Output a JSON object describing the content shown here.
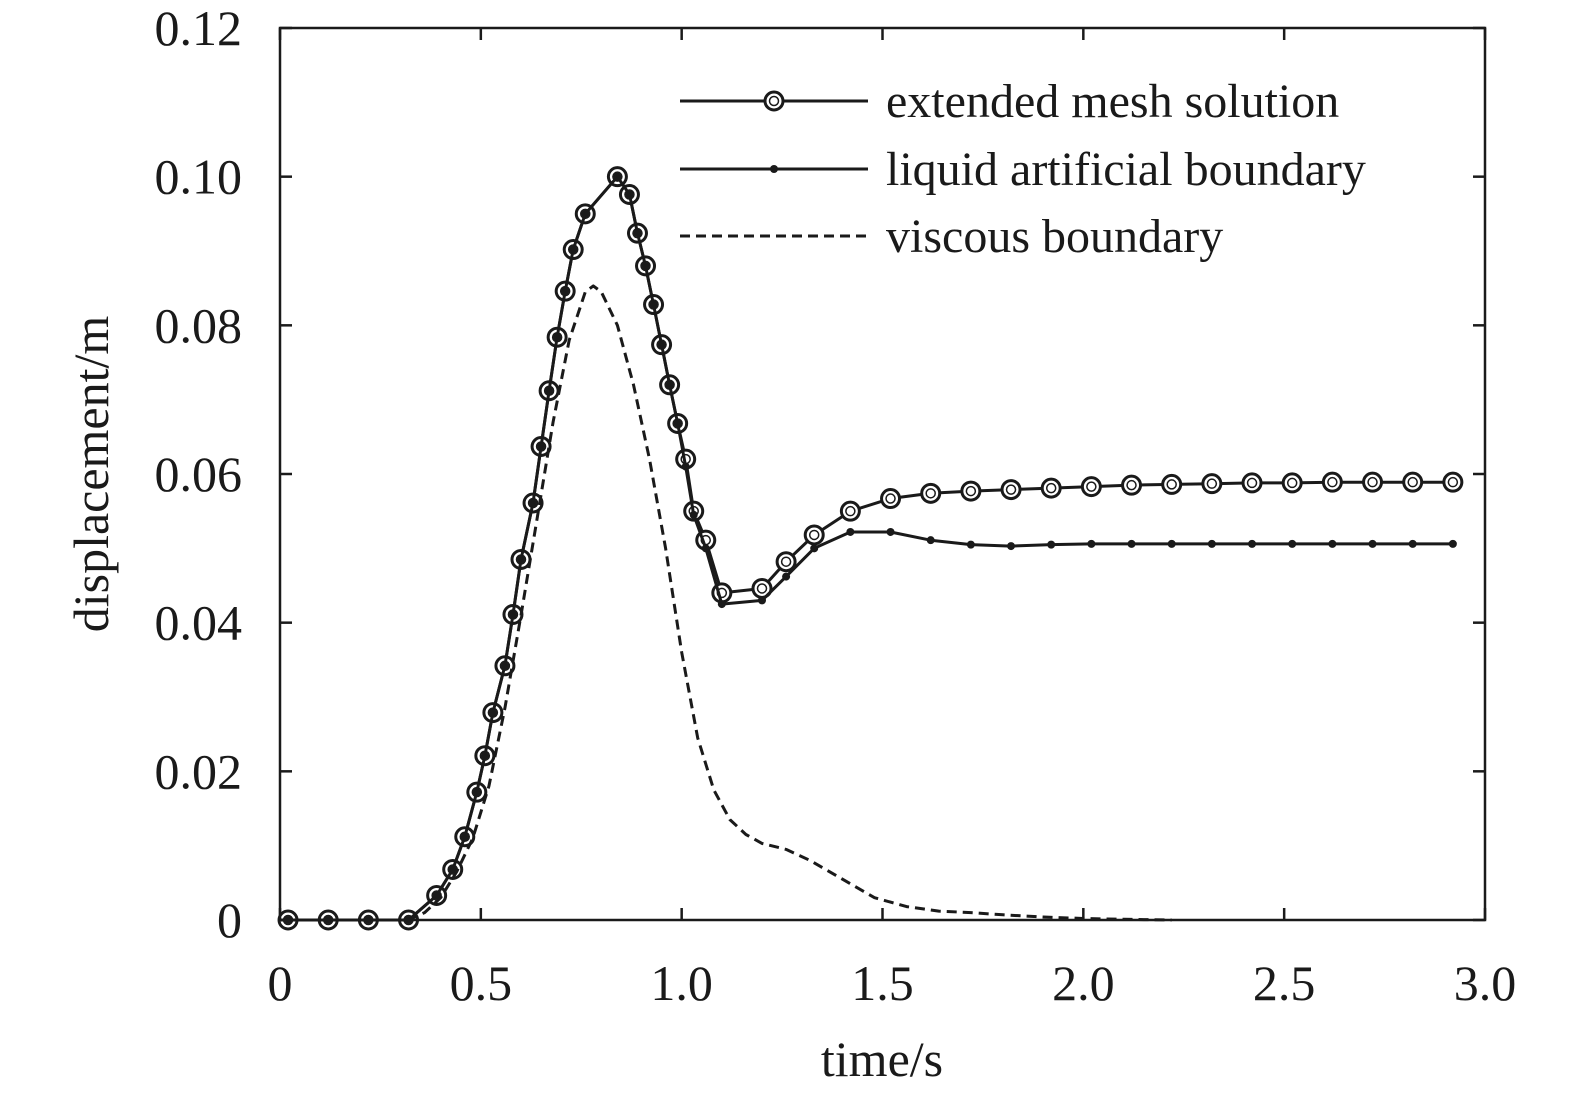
{
  "chart_data": {
    "type": "line",
    "title": "",
    "xlabel": "time/s",
    "ylabel": "displacement/m",
    "xlim": [
      0,
      3.0
    ],
    "ylim": [
      0,
      0.12
    ],
    "xticks": [
      0,
      0.5,
      1.0,
      1.5,
      2.0,
      2.5,
      3.0
    ],
    "xtick_labels": [
      "0",
      "0.5",
      "1.0",
      "1.5",
      "2.0",
      "2.5",
      "3.0"
    ],
    "yticks": [
      0,
      0.02,
      0.04,
      0.06,
      0.08,
      0.1,
      0.12
    ],
    "ytick_labels": [
      "0",
      "0.02",
      "0.04",
      "0.06",
      "0.08",
      "0.10",
      "0.12"
    ],
    "grid": false,
    "legend_position": "top-right",
    "series": [
      {
        "name": "extended mesh solution",
        "marker": "open-circle",
        "dash": "solid",
        "color": "#1a1a1a",
        "x": [
          0.02,
          0.12,
          0.22,
          0.32,
          0.39,
          0.43,
          0.46,
          0.49,
          0.51,
          0.53,
          0.56,
          0.58,
          0.6,
          0.63,
          0.65,
          0.67,
          0.69,
          0.71,
          0.73,
          0.76,
          0.84,
          0.87,
          0.89,
          0.91,
          0.93,
          0.95,
          0.97,
          0.99,
          1.01,
          1.03,
          1.06,
          1.1,
          1.2,
          1.26,
          1.33,
          1.42,
          1.52,
          1.62,
          1.72,
          1.82,
          1.92,
          2.02,
          2.12,
          2.22,
          2.32,
          2.42,
          2.52,
          2.62,
          2.72,
          2.82,
          2.92
        ],
        "y": [
          0.0,
          0.0,
          0.0,
          0.0,
          0.0033,
          0.0068,
          0.0112,
          0.0172,
          0.0221,
          0.0279,
          0.0342,
          0.0411,
          0.0485,
          0.0561,
          0.0637,
          0.0712,
          0.0784,
          0.0846,
          0.0902,
          0.095,
          0.1,
          0.0976,
          0.0924,
          0.088,
          0.0828,
          0.0774,
          0.072,
          0.0668,
          0.062,
          0.055,
          0.0511,
          0.044,
          0.0446,
          0.0482,
          0.0518,
          0.055,
          0.0567,
          0.0574,
          0.0577,
          0.0579,
          0.0581,
          0.0583,
          0.0585,
          0.0586,
          0.0587,
          0.0588,
          0.0588,
          0.0589,
          0.0589,
          0.0589,
          0.0589
        ]
      },
      {
        "name": "liquid artificial boundary",
        "marker": "dot",
        "dash": "solid",
        "color": "#1a1a1a",
        "x": [
          0.02,
          0.12,
          0.22,
          0.32,
          0.39,
          0.43,
          0.46,
          0.49,
          0.51,
          0.53,
          0.56,
          0.58,
          0.6,
          0.63,
          0.65,
          0.67,
          0.69,
          0.71,
          0.73,
          0.76,
          0.84,
          0.87,
          0.89,
          0.91,
          0.93,
          0.95,
          0.97,
          0.99,
          1.01,
          1.03,
          1.06,
          1.1,
          1.2,
          1.26,
          1.33,
          1.42,
          1.52,
          1.62,
          1.72,
          1.82,
          1.92,
          2.02,
          2.12,
          2.22,
          2.32,
          2.42,
          2.52,
          2.62,
          2.72,
          2.82,
          2.92
        ],
        "y": [
          0.0,
          0.0,
          0.0,
          0.0,
          0.0033,
          0.0068,
          0.0112,
          0.0172,
          0.0221,
          0.0279,
          0.0342,
          0.0411,
          0.0485,
          0.0561,
          0.0637,
          0.0712,
          0.0784,
          0.0846,
          0.0902,
          0.095,
          0.1,
          0.0976,
          0.0924,
          0.088,
          0.0828,
          0.0774,
          0.072,
          0.0668,
          0.061,
          0.0545,
          0.05,
          0.0425,
          0.043,
          0.0462,
          0.05,
          0.0522,
          0.0522,
          0.0511,
          0.0505,
          0.0503,
          0.0505,
          0.0506,
          0.0506,
          0.0506,
          0.0506,
          0.0506,
          0.0506,
          0.0506,
          0.0506,
          0.0506,
          0.0506
        ]
      },
      {
        "name": "viscous boundary",
        "marker": "none",
        "dash": "dashed",
        "color": "#1a1a1a",
        "x": [
          0.0,
          0.32,
          0.36,
          0.4,
          0.44,
          0.48,
          0.52,
          0.56,
          0.6,
          0.64,
          0.68,
          0.72,
          0.76,
          0.78,
          0.8,
          0.84,
          0.88,
          0.92,
          0.96,
          1.0,
          1.04,
          1.08,
          1.12,
          1.16,
          1.2,
          1.26,
          1.32,
          1.4,
          1.48,
          1.56,
          1.64,
          1.72,
          1.8,
          1.9,
          2.0,
          2.1,
          2.22
        ],
        "y": [
          0.0,
          0.0,
          0.001,
          0.003,
          0.0065,
          0.011,
          0.018,
          0.0285,
          0.041,
          0.054,
          0.067,
          0.078,
          0.0845,
          0.0853,
          0.0845,
          0.08,
          0.072,
          0.062,
          0.05,
          0.036,
          0.0245,
          0.0175,
          0.0135,
          0.0115,
          0.0103,
          0.0095,
          0.008,
          0.0055,
          0.003,
          0.0018,
          0.0012,
          0.001,
          0.0007,
          0.0004,
          0.0002,
          0.0001,
          0.0
        ]
      }
    ]
  }
}
